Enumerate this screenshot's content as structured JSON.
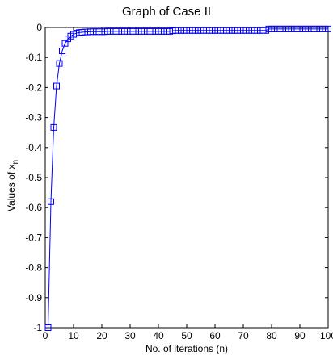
{
  "chart_data": {
    "type": "line",
    "title": "Graph of Case II",
    "xlabel": "No. of iterations (n)",
    "ylabel": {
      "main": "Values of x",
      "subscript": "n"
    },
    "xlim": [
      0,
      100
    ],
    "ylim": [
      -1,
      0
    ],
    "xticks": [
      0,
      10,
      20,
      30,
      40,
      50,
      60,
      70,
      80,
      90,
      100
    ],
    "yticks": [
      0,
      -0.1,
      -0.2,
      -0.3,
      -0.4,
      -0.5,
      -0.6,
      -0.7,
      -0.8,
      -0.9,
      -1
    ],
    "grid": false,
    "legend": "none",
    "colors": {
      "series": "#0000ff",
      "axes": "#000000",
      "background": "#ffffff"
    },
    "marker": "square",
    "series": [
      {
        "x": [
          1,
          2,
          3,
          4,
          5,
          6,
          7,
          8,
          9,
          10,
          11,
          12,
          13,
          14,
          15,
          16,
          17,
          18,
          19,
          20,
          21,
          22,
          23,
          24,
          25,
          26,
          27,
          28,
          29,
          30,
          31,
          32,
          33,
          34,
          35,
          36,
          37,
          38,
          39,
          40,
          41,
          42,
          43,
          44,
          45,
          46,
          47,
          48,
          49,
          50,
          51,
          52,
          53,
          54,
          55,
          56,
          57,
          58,
          59,
          60,
          61,
          62,
          63,
          64,
          65,
          66,
          67,
          68,
          69,
          70,
          71,
          72,
          73,
          74,
          75,
          76,
          77,
          78,
          79,
          80,
          81,
          82,
          83,
          84,
          85,
          86,
          87,
          88,
          89,
          90,
          91,
          92,
          93,
          94,
          95,
          96,
          97,
          98,
          99,
          100
        ],
        "values": [
          -1,
          -0.58,
          -0.333,
          -0.195,
          -0.12,
          -0.078,
          -0.053,
          -0.038,
          -0.029,
          -0.023,
          -0.019,
          -0.017,
          -0.016,
          -0.015,
          -0.015,
          -0.014,
          -0.014,
          -0.014,
          -0.014,
          -0.014,
          -0.014,
          -0.013,
          -0.013,
          -0.013,
          -0.013,
          -0.013,
          -0.013,
          -0.013,
          -0.013,
          -0.013,
          -0.013,
          -0.013,
          -0.013,
          -0.013,
          -0.013,
          -0.013,
          -0.013,
          -0.013,
          -0.013,
          -0.013,
          -0.013,
          -0.013,
          -0.013,
          -0.013,
          -0.011,
          -0.01,
          -0.01,
          -0.01,
          -0.01,
          -0.01,
          -0.01,
          -0.01,
          -0.01,
          -0.01,
          -0.01,
          -0.01,
          -0.01,
          -0.01,
          -0.01,
          -0.01,
          -0.01,
          -0.01,
          -0.01,
          -0.01,
          -0.01,
          -0.01,
          -0.01,
          -0.01,
          -0.01,
          -0.01,
          -0.01,
          -0.01,
          -0.01,
          -0.01,
          -0.01,
          -0.01,
          -0.01,
          -0.01,
          -0.005,
          -0.005,
          -0.005,
          -0.005,
          -0.005,
          -0.005,
          -0.005,
          -0.005,
          -0.005,
          -0.005,
          -0.005,
          -0.005,
          -0.005,
          -0.005,
          -0.005,
          -0.005,
          -0.005,
          -0.005,
          -0.005,
          -0.005,
          -0.005,
          -0.005
        ]
      }
    ]
  }
}
